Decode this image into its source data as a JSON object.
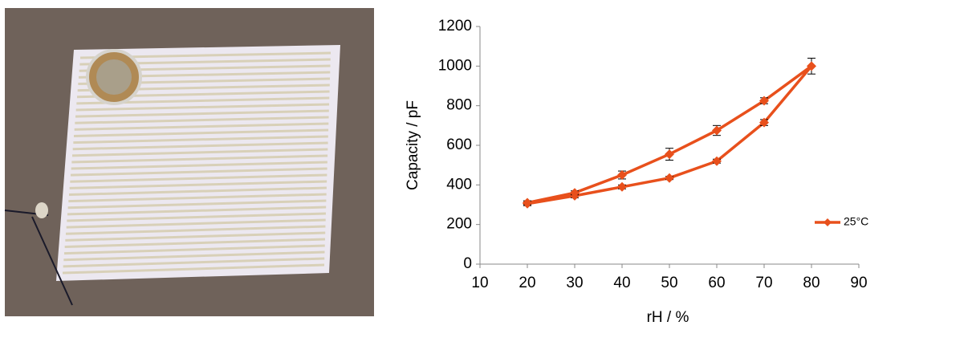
{
  "chart_data": {
    "type": "line",
    "xlabel": "rH / %",
    "ylabel": "Capacity / pF",
    "x": [
      20,
      30,
      40,
      50,
      60,
      70,
      80,
      70,
      60,
      50,
      40,
      30,
      20
    ],
    "series": [
      {
        "name": "25°C",
        "color": "#e8501c",
        "values": [
          305,
          345,
          390,
          435,
          520,
          715,
          1000,
          825,
          675,
          555,
          450,
          360,
          310
        ],
        "errors": [
          10,
          10,
          10,
          8,
          10,
          15,
          40,
          15,
          25,
          30,
          20,
          10,
          10
        ]
      }
    ],
    "xlim": [
      10,
      90
    ],
    "xticks": [
      10,
      20,
      30,
      40,
      50,
      60,
      70,
      80,
      90
    ],
    "ylim": [
      0,
      1200
    ],
    "yticks": [
      0,
      200,
      400,
      600,
      800,
      1000,
      1200
    ],
    "legend": "right",
    "grid": false
  }
}
